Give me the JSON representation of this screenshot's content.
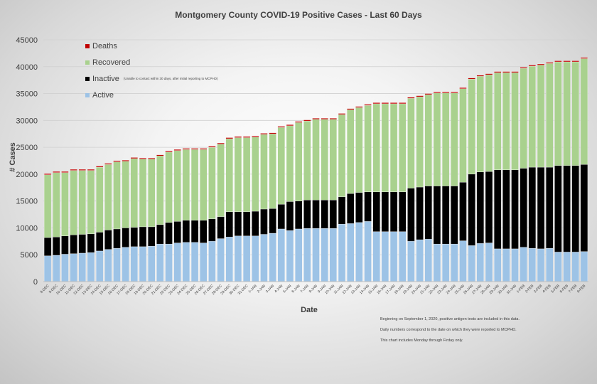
{
  "chart_data": {
    "type": "bar",
    "stacked": true,
    "title": "Montgomery County COVID-19 Positive Cases  - Last 60 Days",
    "xlabel": "Date",
    "ylabel": "# Cases",
    "ylim": [
      0,
      45000
    ],
    "yticks": [
      "0",
      "5000",
      "10000",
      "15000",
      "20000",
      "25000",
      "30000",
      "35000",
      "40000",
      "45000"
    ],
    "grid": true,
    "legend_position": "top-left",
    "categories": [
      "8-DEC",
      "9-DEC",
      "10-DEC",
      "11-DEC",
      "12-DEC",
      "13-DEC",
      "14-DEC",
      "15-DEC",
      "16-DEC",
      "17-DEC",
      "18-DEC",
      "19-DEC",
      "20-DEC",
      "21-DEC",
      "22-DEC",
      "23-DEC",
      "24-DEC",
      "25-DEC",
      "26-DEC",
      "27-DEC",
      "28-DEC",
      "29-DEC",
      "30-DEC",
      "31-DEC",
      "1-JAN",
      "2-JAN",
      "3-JAN",
      "4-JAN",
      "5-JAN",
      "6-JAN",
      "7-JAN",
      "8-JAN",
      "9-JAN",
      "10-JAN",
      "11-JAN",
      "12-JAN",
      "13-JAN",
      "14-JAN",
      "15-JAN",
      "16-JAN",
      "17-JAN",
      "18-JAN",
      "19-JAN",
      "20-JAN",
      "21-JAN",
      "22-JAN",
      "23-JAN",
      "24-JAN",
      "25-JAN",
      "26-JAN",
      "27-JAN",
      "28-JAN",
      "29-JAN",
      "30-JAN",
      "31-JAN",
      "1-FEB",
      "2-FEB",
      "3-FEB",
      "4-FEB",
      "5-FEB",
      "6-FEB",
      "7-FEB",
      "8-FEB"
    ],
    "series": [
      {
        "name": "Active",
        "color": "#9dc3e6",
        "values": [
          4800,
          4900,
          5100,
          5200,
          5300,
          5400,
          5700,
          6000,
          6200,
          6400,
          6500,
          6500,
          6600,
          7000,
          7000,
          7200,
          7300,
          7300,
          7200,
          7500,
          8000,
          8300,
          8500,
          8500,
          8500,
          8800,
          9000,
          9800,
          9500,
          9800,
          9900,
          9900,
          9900,
          9900,
          10700,
          10800,
          11000,
          11200,
          9300,
          9300,
          9300,
          9300,
          7500,
          7800,
          7900,
          7000,
          7000,
          7000,
          7600,
          6700,
          7100,
          7200,
          6100,
          6100,
          6100,
          6400,
          6200,
          6100,
          6200,
          5500,
          5500,
          5500,
          5600
        ]
      },
      {
        "name": "Inactive",
        "color": "#000000",
        "values": [
          3400,
          3400,
          3400,
          3500,
          3500,
          3500,
          3500,
          3600,
          3600,
          3600,
          3600,
          3700,
          3600,
          3600,
          4000,
          4000,
          4100,
          4100,
          4200,
          4200,
          4100,
          4700,
          4500,
          4500,
          4600,
          4700,
          4600,
          4600,
          5400,
          5200,
          5300,
          5300,
          5300,
          5300,
          5100,
          5600,
          5600,
          5500,
          7400,
          7400,
          7400,
          7400,
          9900,
          9800,
          9900,
          10800,
          10800,
          10800,
          10900,
          13300,
          13300,
          13300,
          14700,
          14700,
          14700,
          14700,
          15100,
          15200,
          15100,
          16100,
          16100,
          16100,
          16200
        ]
      },
      {
        "name": "Recovered",
        "color": "#a9d18e",
        "values": [
          11700,
          12000,
          11800,
          12000,
          11900,
          11800,
          12100,
          12200,
          12500,
          12400,
          12800,
          12600,
          12600,
          12800,
          13100,
          13200,
          13200,
          13200,
          13200,
          13300,
          13500,
          13600,
          13800,
          13800,
          13800,
          13900,
          13900,
          14300,
          14100,
          14600,
          14700,
          15000,
          15000,
          15000,
          15300,
          15600,
          15800,
          16100,
          16400,
          16400,
          16400,
          16400,
          16700,
          16800,
          17000,
          17300,
          17300,
          17300,
          17400,
          17700,
          17800,
          18000,
          18100,
          18100,
          18100,
          18600,
          18800,
          19000,
          19300,
          19300,
          19300,
          19300,
          19700
        ]
      },
      {
        "name": "Deaths",
        "color": "#c00000",
        "values": [
          200,
          200,
          200,
          200,
          200,
          200,
          200,
          200,
          200,
          200,
          200,
          200,
          200,
          200,
          200,
          200,
          200,
          200,
          200,
          200,
          200,
          200,
          200,
          200,
          200,
          200,
          200,
          200,
          200,
          200,
          200,
          200,
          200,
          200,
          200,
          200,
          200,
          200,
          200,
          200,
          200,
          200,
          200,
          200,
          200,
          200,
          200,
          200,
          200,
          200,
          200,
          200,
          200,
          200,
          200,
          200,
          200,
          200,
          200,
          200,
          200,
          200,
          200
        ]
      }
    ],
    "legend": {
      "deaths": "Deaths",
      "recovered": "Recovered",
      "inactive": "Inactive",
      "inactive_note": "(Unable to contact within 30 days, after initial reporting to MCPHD)",
      "active": "Active"
    },
    "notes": [
      "Beginning on September 1, 2020, positive antigen tests are included in this data.",
      "Daily numbers correspond to the date on which they were reported to MCPHD.",
      "This chart includes Monday through Firday only."
    ]
  }
}
